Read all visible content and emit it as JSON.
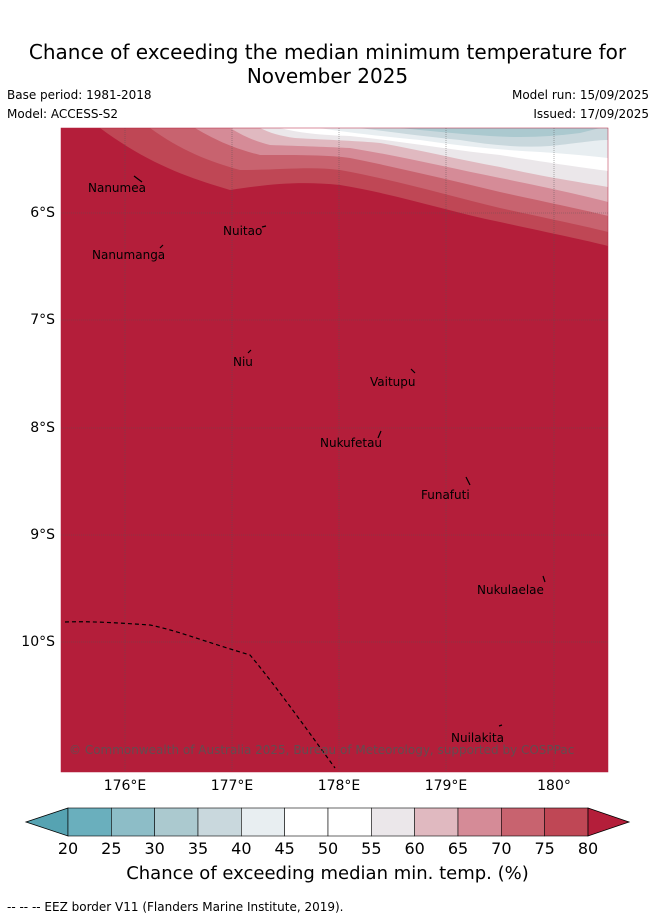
{
  "header": {
    "title_line1": "Chance of exceeding the median minimum temperature for",
    "title_line2": "November 2025",
    "base_period": "Base period: 1981-2018",
    "model": "Model: ACCESS-S2",
    "model_run": "Model run: 15/09/2025",
    "issued": "Issued: 17/09/2025"
  },
  "map": {
    "background_color": "#b41e3a",
    "lat_labels": [
      "6°S",
      "7°S",
      "8°S",
      "9°S",
      "10°S"
    ],
    "lon_labels": [
      "176°E",
      "177°E",
      "178°E",
      "179°E",
      "180°"
    ],
    "places": [
      {
        "name": "Nanumea"
      },
      {
        "name": "Nuitao"
      },
      {
        "name": "Nanumanga"
      },
      {
        "name": "Niu"
      },
      {
        "name": "Vaitupu"
      },
      {
        "name": "Nukufetau"
      },
      {
        "name": "Funafuti"
      },
      {
        "name": "Nukulaelae"
      },
      {
        "name": "Nuilakita"
      }
    ],
    "copyright": "© Commonwealth of Australia 2025, Bureau of Meteorology, supported by COSPPac"
  },
  "colorbar": {
    "ticks": [
      "20",
      "25",
      "30",
      "35",
      "40",
      "45",
      "50",
      "55",
      "60",
      "65",
      "70",
      "75",
      "80"
    ],
    "colors": [
      "#6aafbd",
      "#8dbdc7",
      "#abc9cf",
      "#c9d8dd",
      "#e8eef1",
      "#ffffff",
      "#ffffff",
      "#ebe7ea",
      "#e0b9c0",
      "#d58b97",
      "#c8636f",
      "#bf4755"
    ],
    "low_extend_color": "#56a3b2",
    "high_extend_color": "#b41e3a",
    "title": "Chance of exceeding median min. temp. (%)"
  },
  "footnote": "--  --  -- EEZ border V11 (Flanders Marine Institute, 2019)."
}
